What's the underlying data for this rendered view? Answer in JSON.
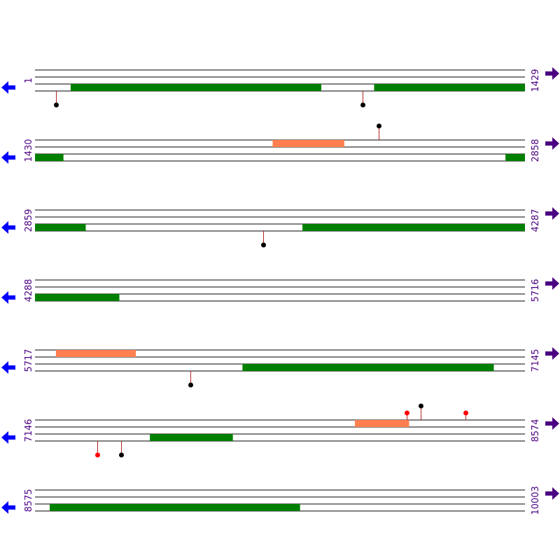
{
  "colors": {
    "line": "#000000",
    "green_feature": "#008000",
    "orange_feature": "#ff7f50",
    "stem": "#b22222",
    "dot_black": "#000000",
    "dot_red": "#ff0000",
    "arrow_left": "#0000ff",
    "arrow_right": "#4b0082",
    "label": "#4b0082"
  },
  "icons": {
    "left": "arrow-left-icon",
    "right": "arrow-right-icon"
  },
  "rows": [
    {
      "start": 1,
      "end": 1429,
      "features": [
        {
          "track": 2,
          "from": 105,
          "to": 835,
          "color": "green"
        },
        {
          "track": 2,
          "from": 990,
          "to": 1429,
          "color": "green"
        }
      ],
      "markers": [
        {
          "pos": 62,
          "side": "below",
          "color": "black"
        },
        {
          "pos": 957,
          "side": "below",
          "color": "black"
        }
      ]
    },
    {
      "start": 1430,
      "end": 2858,
      "features": [
        {
          "track": 0,
          "from": 2123,
          "to": 2331,
          "color": "orange"
        },
        {
          "track": 2,
          "from": 1430,
          "to": 1512,
          "color": "green"
        },
        {
          "track": 2,
          "from": 2802,
          "to": 2858,
          "color": "green"
        }
      ],
      "markers": [
        {
          "pos": 2432,
          "side": "above",
          "color": "black"
        }
      ]
    },
    {
      "start": 2859,
      "end": 4287,
      "features": [
        {
          "track": 2,
          "from": 2859,
          "to": 3006,
          "color": "green"
        },
        {
          "track": 2,
          "from": 3639,
          "to": 4287,
          "color": "green"
        }
      ],
      "markers": [
        {
          "pos": 3524,
          "side": "below",
          "color": "black"
        }
      ]
    },
    {
      "start": 4288,
      "end": 5716,
      "features": [
        {
          "track": 2,
          "from": 4288,
          "to": 4533,
          "color": "green"
        }
      ],
      "markers": []
    },
    {
      "start": 5717,
      "end": 7145,
      "features": [
        {
          "track": 0,
          "from": 5778,
          "to": 6010,
          "color": "orange"
        },
        {
          "track": 2,
          "from": 6322,
          "to": 7054,
          "color": "green"
        }
      ],
      "markers": [
        {
          "pos": 6171,
          "side": "below",
          "color": "black"
        }
      ]
    },
    {
      "start": 7146,
      "end": 8574,
      "features": [
        {
          "track": 0,
          "from": 8079,
          "to": 8236,
          "color": "orange"
        },
        {
          "track": 2,
          "from": 7481,
          "to": 7722,
          "color": "green"
        }
      ],
      "markers": [
        {
          "pos": 8230,
          "side": "above",
          "color": "red"
        },
        {
          "pos": 8270,
          "side": "above",
          "color": "black"
        },
        {
          "pos": 8402,
          "side": "above",
          "color": "red"
        },
        {
          "pos": 7327,
          "side": "below",
          "color": "red"
        },
        {
          "pos": 7398,
          "side": "below",
          "color": "black"
        }
      ]
    },
    {
      "start": 8575,
      "end": 10003,
      "features": [
        {
          "track": 2,
          "from": 8618,
          "to": 9347,
          "color": "green"
        }
      ],
      "markers": []
    }
  ]
}
